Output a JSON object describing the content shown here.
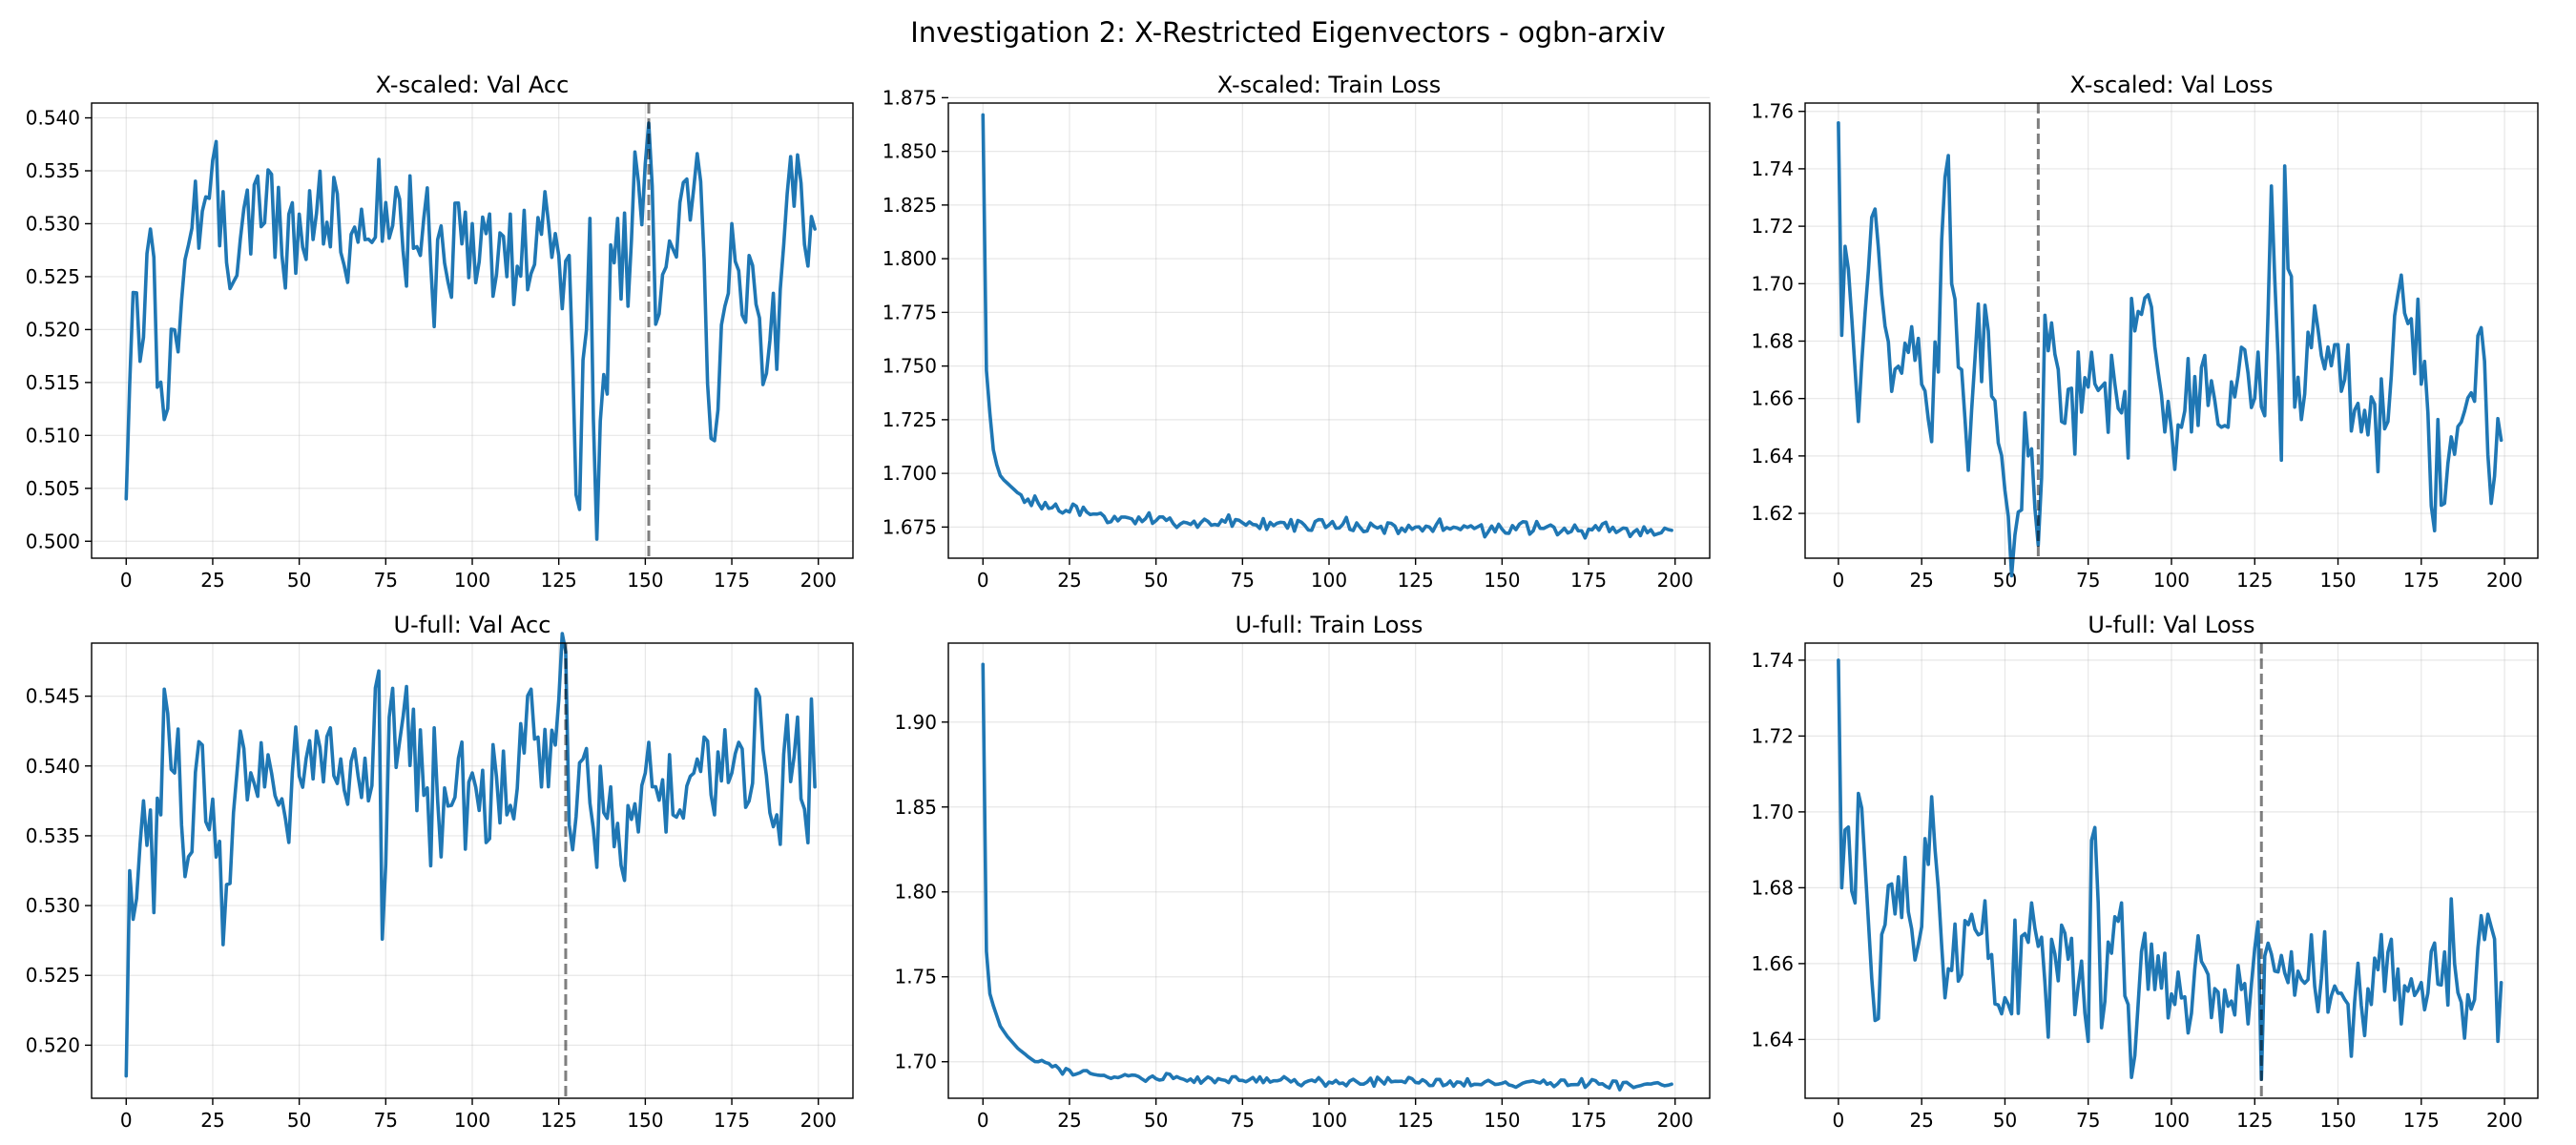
{
  "figure": {
    "title": "Investigation 2: X-Restricted Eigenvectors - ogbn-arxiv"
  },
  "chart_data": [
    {
      "type": "line",
      "title": "X-scaled: Val Acc",
      "xlim": [
        -10,
        210
      ],
      "ylim": [
        0.4984,
        0.5414
      ],
      "xticks": [
        0,
        25,
        50,
        75,
        100,
        125,
        150,
        175,
        200
      ],
      "yticks": [
        0.5,
        0.505,
        0.51,
        0.515,
        0.52,
        0.525,
        0.53,
        0.535,
        0.54
      ],
      "ytick_decimals": 3,
      "grid": true,
      "marker_x": 151,
      "epochs": 200,
      "series": [
        {
          "kind": "noisy",
          "anchors": [
            [
              0,
              0.504
            ],
            [
              2,
              0.5235
            ],
            [
              4,
              0.517
            ],
            [
              7,
              0.5295
            ],
            [
              11,
              0.5115
            ],
            [
              18,
              0.528
            ],
            [
              25,
              0.536
            ],
            [
              31,
              0.5245
            ],
            [
              38,
              0.5345
            ],
            [
              45,
              0.527
            ],
            [
              55,
              0.531
            ],
            [
              65,
              0.529
            ],
            [
              75,
              0.532
            ],
            [
              85,
              0.527
            ],
            [
              100,
              0.53
            ],
            [
              110,
              0.525
            ],
            [
              120,
              0.529
            ],
            [
              128,
              0.527
            ],
            [
              131,
              0.503
            ],
            [
              134,
              0.5305
            ],
            [
              136,
              0.5002
            ],
            [
              140,
              0.528
            ],
            [
              148,
              0.534
            ],
            [
              151,
              0.5395
            ],
            [
              153,
              0.5205
            ],
            [
              160,
              0.532
            ],
            [
              166,
              0.534
            ],
            [
              170,
              0.5095
            ],
            [
              175,
              0.53
            ],
            [
              180,
              0.527
            ],
            [
              184,
              0.5148
            ],
            [
              190,
              0.528
            ],
            [
              194,
              0.5365
            ],
            [
              197,
              0.526
            ],
            [
              199,
              0.5295
            ]
          ],
          "amp": 0.0042,
          "smooth_to": 1,
          "seed": 11
        }
      ]
    },
    {
      "type": "line",
      "title": "X-scaled: Train Loss",
      "xlim": [
        -10,
        210
      ],
      "ylim": [
        1.6605,
        1.8725
      ],
      "xticks": [
        0,
        25,
        50,
        75,
        100,
        125,
        150,
        175,
        200
      ],
      "yticks": [
        1.675,
        1.7,
        1.725,
        1.75,
        1.775,
        1.8,
        1.825,
        1.85,
        1.875
      ],
      "ytick_decimals": 3,
      "grid": true,
      "marker_x": null,
      "epochs": 200,
      "series": [
        {
          "kind": "decay",
          "anchors": [
            [
              0,
              1.867
            ],
            [
              1,
              1.748
            ],
            [
              2,
              1.728
            ],
            [
              3,
              1.711
            ],
            [
              4,
              1.704
            ],
            [
              5,
              1.699
            ],
            [
              6,
              1.697
            ],
            [
              8,
              1.694
            ],
            [
              10,
              1.691
            ],
            [
              13,
              1.688
            ],
            [
              16,
              1.686
            ],
            [
              20,
              1.684
            ],
            [
              25,
              1.682
            ],
            [
              35,
              1.68
            ],
            [
              50,
              1.678
            ],
            [
              75,
              1.677
            ],
            [
              100,
              1.676
            ],
            [
              125,
              1.675
            ],
            [
              150,
              1.674
            ],
            [
              175,
              1.674
            ],
            [
              199,
              1.6735
            ]
          ],
          "amp": 0.0022,
          "smooth_to": 12,
          "seed": 23
        }
      ]
    },
    {
      "type": "line",
      "title": "X-scaled: Val Loss",
      "xlim": [
        -10,
        210
      ],
      "ylim": [
        1.6044,
        1.7629
      ],
      "xticks": [
        0,
        25,
        50,
        75,
        100,
        125,
        150,
        175,
        200
      ],
      "yticks": [
        1.62,
        1.64,
        1.66,
        1.68,
        1.7,
        1.72,
        1.74,
        1.76
      ],
      "ytick_decimals": 2,
      "grid": true,
      "marker_x": 60,
      "epochs": 200,
      "series": [
        {
          "kind": "noisy",
          "anchors": [
            [
              0,
              1.756
            ],
            [
              1,
              1.682
            ],
            [
              2,
              1.713
            ],
            [
              3,
              1.705
            ],
            [
              6,
              1.652
            ],
            [
              11,
              1.726
            ],
            [
              16,
              1.6625
            ],
            [
              22,
              1.685
            ],
            [
              28,
              1.645
            ],
            [
              32,
              1.737
            ],
            [
              38,
              1.653
            ],
            [
              44,
              1.6925
            ],
            [
              48,
              1.6445
            ],
            [
              53,
              1.6125
            ],
            [
              56,
              1.655
            ],
            [
              58,
              1.6425
            ],
            [
              60,
              1.609
            ],
            [
              62,
              1.689
            ],
            [
              67,
              1.652
            ],
            [
              75,
              1.664
            ],
            [
              85,
              1.655
            ],
            [
              92,
              1.695
            ],
            [
              100,
              1.649
            ],
            [
              110,
              1.675
            ],
            [
              115,
              1.65
            ],
            [
              122,
              1.677
            ],
            [
              128,
              1.654
            ],
            [
              130,
              1.734
            ],
            [
              133,
              1.6385
            ],
            [
              134,
              1.741
            ],
            [
              137,
              1.657
            ],
            [
              145,
              1.675
            ],
            [
              155,
              1.656
            ],
            [
              165,
              1.652
            ],
            [
              169,
              1.703
            ],
            [
              175,
              1.665
            ],
            [
              182,
              1.6235
            ],
            [
              190,
              1.662
            ],
            [
              194,
              1.673
            ],
            [
              196,
              1.6235
            ],
            [
              198,
              1.653
            ],
            [
              199,
              1.6455
            ]
          ],
          "amp": 0.013,
          "smooth_to": 1,
          "seed": 37
        }
      ]
    },
    {
      "type": "line",
      "title": "U-full: Val Acc",
      "xlim": [
        -10,
        210
      ],
      "ylim": [
        0.5162,
        0.5488
      ],
      "xticks": [
        0,
        25,
        50,
        75,
        100,
        125,
        150,
        175,
        200
      ],
      "yticks": [
        0.52,
        0.525,
        0.53,
        0.535,
        0.54,
        0.545
      ],
      "ytick_decimals": 3,
      "grid": true,
      "marker_x": 127,
      "epochs": 200,
      "series": [
        {
          "kind": "noisy",
          "anchors": [
            [
              0,
              0.5178
            ],
            [
              1,
              0.5325
            ],
            [
              3,
              0.5305
            ],
            [
              5,
              0.5375
            ],
            [
              8,
              0.5295
            ],
            [
              10,
              0.5365
            ],
            [
              11,
              0.5455
            ],
            [
              14,
              0.5395
            ],
            [
              18,
              0.5335
            ],
            [
              22,
              0.5415
            ],
            [
              28,
              0.5272
            ],
            [
              33,
              0.5425
            ],
            [
              40,
              0.5385
            ],
            [
              48,
              0.5395
            ],
            [
              55,
              0.5425
            ],
            [
              62,
              0.5405
            ],
            [
              70,
              0.5375
            ],
            [
              73,
              0.5468
            ],
            [
              74,
              0.5276
            ],
            [
              76,
              0.5435
            ],
            [
              80,
              0.5435
            ],
            [
              90,
              0.5375
            ],
            [
              100,
              0.5395
            ],
            [
              110,
              0.5365
            ],
            [
              117,
              0.5455
            ],
            [
              120,
              0.5385
            ],
            [
              124,
              0.5415
            ],
            [
              127,
              0.5482
            ],
            [
              128,
              0.5358
            ],
            [
              132,
              0.5405
            ],
            [
              135,
              0.5355
            ],
            [
              140,
              0.5385
            ],
            [
              144,
              0.5318
            ],
            [
              150,
              0.5395
            ],
            [
              158,
              0.5365
            ],
            [
              165,
              0.5405
            ],
            [
              175,
              0.5395
            ],
            [
              180,
              0.5375
            ],
            [
              182,
              0.5455
            ],
            [
              188,
              0.5365
            ],
            [
              194,
              0.5435
            ],
            [
              197,
              0.5345
            ],
            [
              198,
              0.5448
            ],
            [
              199,
              0.5385
            ]
          ],
          "amp": 0.0028,
          "smooth_to": 1,
          "seed": 53
        }
      ]
    },
    {
      "type": "line",
      "title": "U-full: Train Loss",
      "xlim": [
        -10,
        210
      ],
      "ylim": [
        1.6785,
        1.9465
      ],
      "xticks": [
        0,
        25,
        50,
        75,
        100,
        125,
        150,
        175,
        200
      ],
      "yticks": [
        1.7,
        1.75,
        1.8,
        1.85,
        1.9
      ],
      "ytick_decimals": 2,
      "grid": true,
      "marker_x": null,
      "epochs": 200,
      "series": [
        {
          "kind": "decay",
          "anchors": [
            [
              0,
              1.934
            ],
            [
              1,
              1.765
            ],
            [
              2,
              1.74
            ],
            [
              3,
              1.733
            ],
            [
              4,
              1.727
            ],
            [
              5,
              1.721
            ],
            [
              7,
              1.715
            ],
            [
              10,
              1.708
            ],
            [
              13,
              1.703
            ],
            [
              16,
              1.7
            ],
            [
              20,
              1.697
            ],
            [
              25,
              1.695
            ],
            [
              35,
              1.692
            ],
            [
              50,
              1.69
            ],
            [
              75,
              1.689
            ],
            [
              100,
              1.688
            ],
            [
              125,
              1.6878
            ],
            [
              150,
              1.6873
            ],
            [
              175,
              1.6868
            ],
            [
              199,
              1.6868
            ]
          ],
          "amp": 0.0017,
          "smooth_to": 12,
          "seed": 71
        }
      ]
    },
    {
      "type": "line",
      "title": "U-full: Val Loss",
      "xlim": [
        -10,
        210
      ],
      "ylim": [
        1.6245,
        1.7445
      ],
      "xticks": [
        0,
        25,
        50,
        75,
        100,
        125,
        150,
        175,
        200
      ],
      "yticks": [
        1.64,
        1.66,
        1.68,
        1.7,
        1.72,
        1.74
      ],
      "ytick_decimals": 2,
      "grid": true,
      "marker_x": 127,
      "epochs": 200,
      "series": [
        {
          "kind": "noisy",
          "anchors": [
            [
              0,
              1.74
            ],
            [
              1,
              1.68
            ],
            [
              3,
              1.696
            ],
            [
              5,
              1.676
            ],
            [
              7,
              1.701
            ],
            [
              11,
              1.645
            ],
            [
              16,
              1.681
            ],
            [
              20,
              1.688
            ],
            [
              24,
              1.665
            ],
            [
              28,
              1.704
            ],
            [
              32,
              1.651
            ],
            [
              40,
              1.673
            ],
            [
              50,
              1.651
            ],
            [
              58,
              1.676
            ],
            [
              62,
              1.655
            ],
            [
              68,
              1.668
            ],
            [
              75,
              1.6395
            ],
            [
              76,
              1.6925
            ],
            [
              80,
              1.65
            ],
            [
              85,
              1.676
            ],
            [
              88,
              1.63
            ],
            [
              92,
              1.668
            ],
            [
              100,
              1.652
            ],
            [
              110,
              1.659
            ],
            [
              115,
              1.642
            ],
            [
              120,
              1.6595
            ],
            [
              124,
              1.6545
            ],
            [
              126,
              1.671
            ],
            [
              127,
              1.6295
            ],
            [
              128,
              1.662
            ],
            [
              135,
              1.655
            ],
            [
              145,
              1.656
            ],
            [
              155,
              1.65
            ],
            [
              165,
              1.663
            ],
            [
              175,
              1.655
            ],
            [
              185,
              1.66
            ],
            [
              190,
              1.648
            ],
            [
              195,
              1.673
            ],
            [
              197,
              1.6665
            ],
            [
              198,
              1.6395
            ],
            [
              199,
              1.655
            ]
          ],
          "amp": 0.0095,
          "smooth_to": 1,
          "seed": 89
        }
      ]
    }
  ]
}
